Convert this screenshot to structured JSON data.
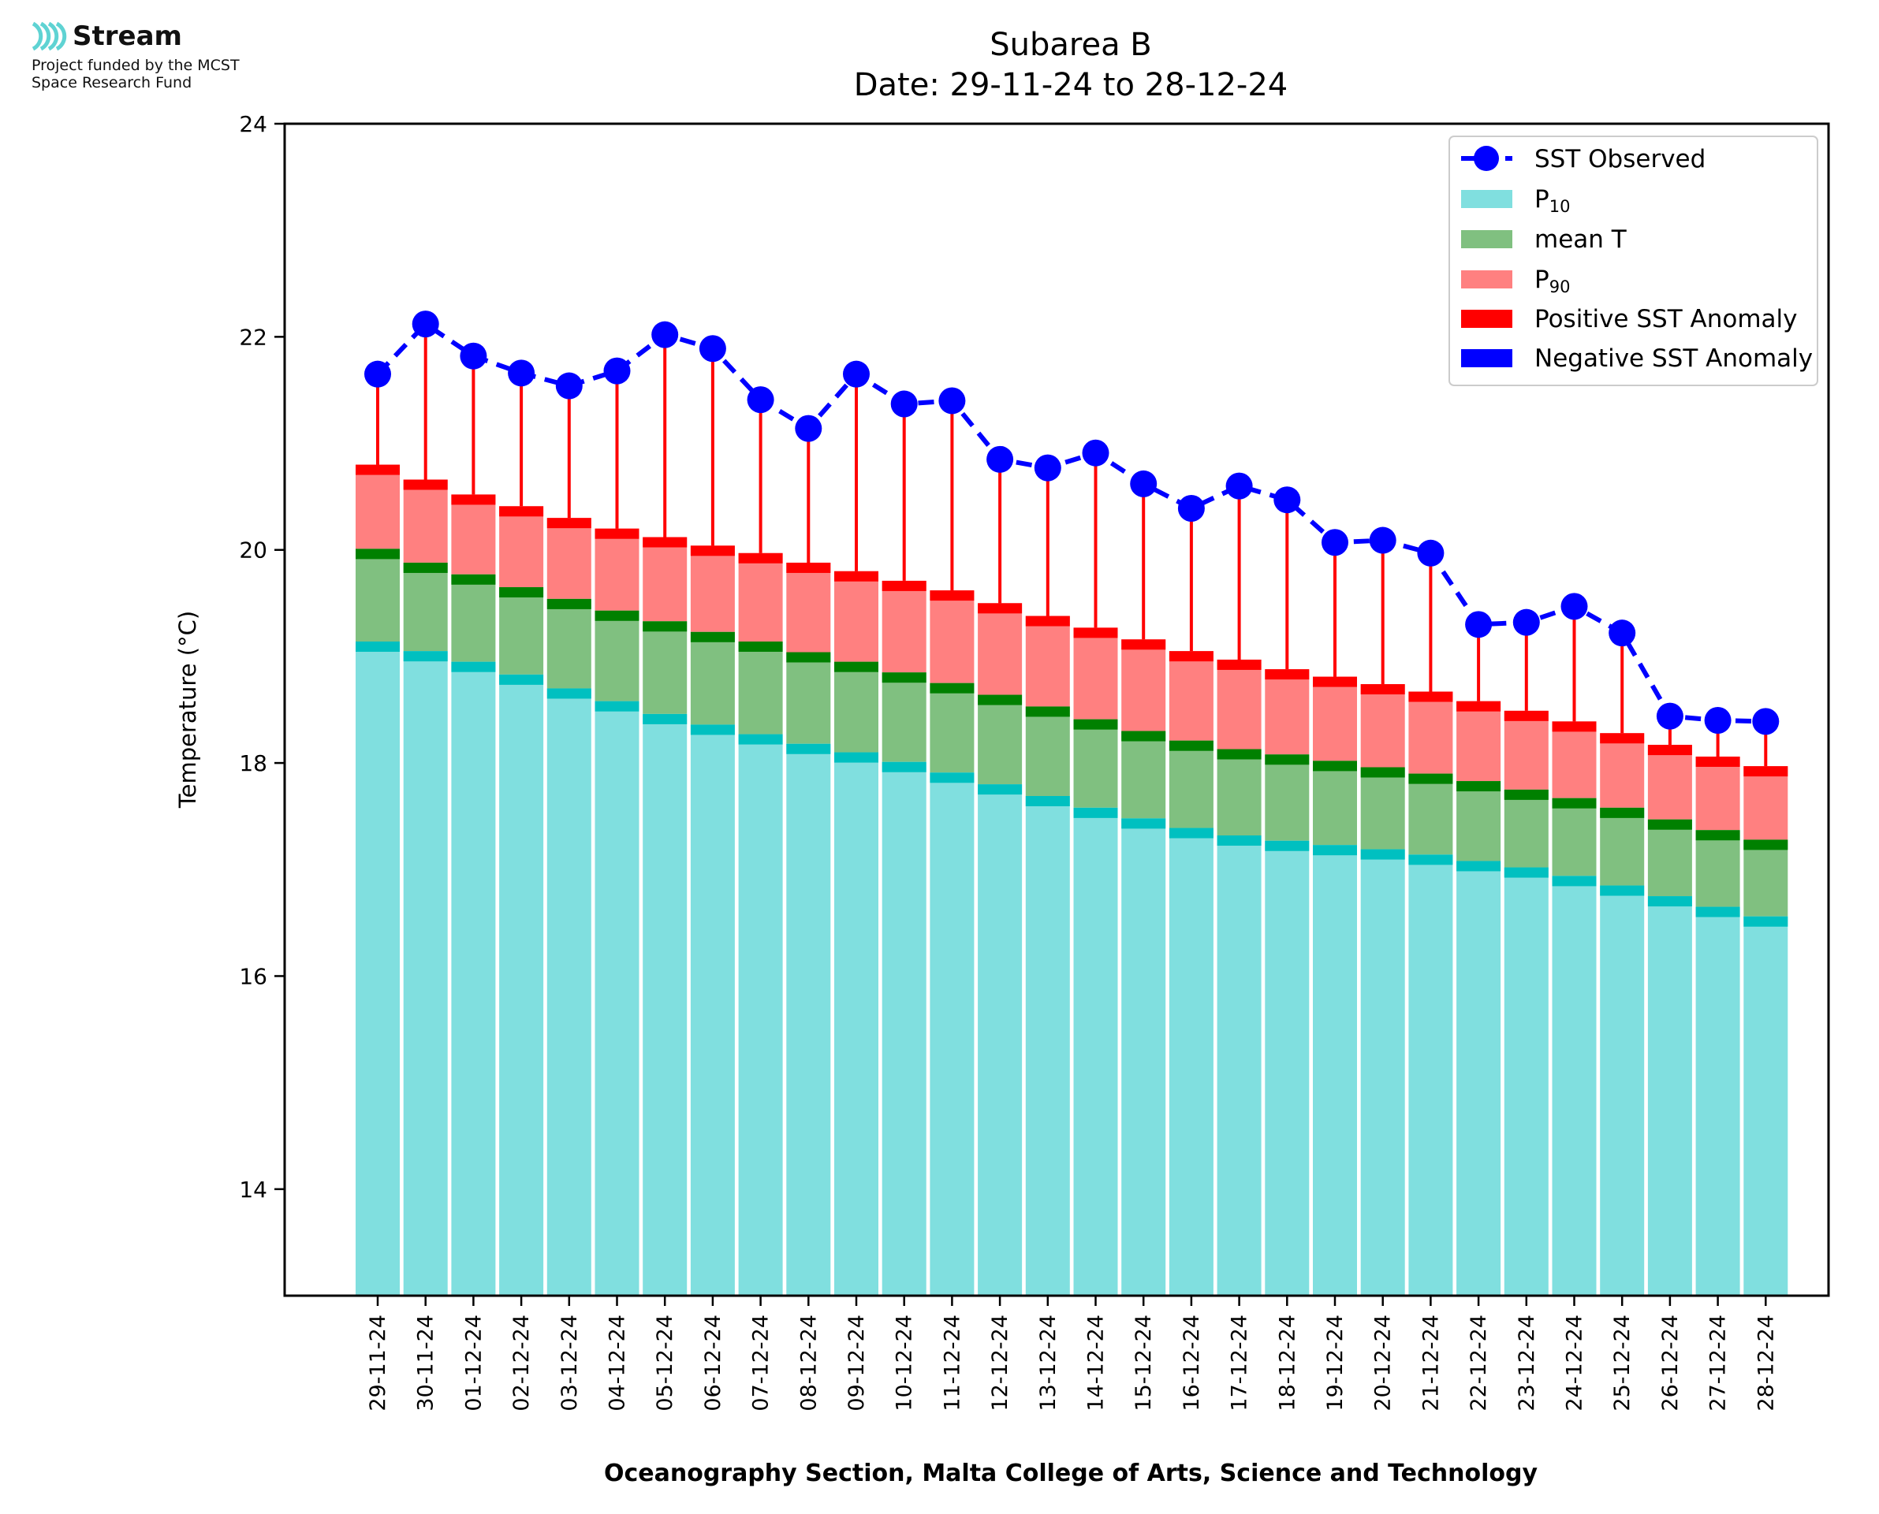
{
  "logo": {
    "name": "Stream",
    "subtitle_line1": "Project funded by the MCST",
    "subtitle_line2": "Space Research Fund"
  },
  "chart_data": {
    "type": "bar",
    "title": "Subarea B",
    "subtitle": "Date: 29-11-24 to 28-12-24",
    "xlabel": "Oceanography Section, Malta College of Arts, Science and Technology",
    "ylabel": "Temperature (°C)",
    "ylim": [
      13,
      24
    ],
    "yticks": [
      14,
      16,
      18,
      20,
      22,
      24
    ],
    "grid": false,
    "legend_position": "top-right",
    "categories": [
      "29-11-24",
      "30-11-24",
      "01-12-24",
      "02-12-24",
      "03-12-24",
      "04-12-24",
      "05-12-24",
      "06-12-24",
      "07-12-24",
      "08-12-24",
      "09-12-24",
      "10-12-24",
      "11-12-24",
      "12-12-24",
      "13-12-24",
      "14-12-24",
      "15-12-24",
      "16-12-24",
      "17-12-24",
      "18-12-24",
      "19-12-24",
      "20-12-24",
      "21-12-24",
      "22-12-24",
      "23-12-24",
      "24-12-24",
      "25-12-24",
      "26-12-24",
      "27-12-24",
      "28-12-24"
    ],
    "series": [
      {
        "name": "SST Observed",
        "style": "line-marker",
        "color": "#0000ff",
        "values": [
          21.65,
          22.12,
          21.82,
          21.66,
          21.54,
          21.68,
          22.02,
          21.89,
          21.41,
          21.14,
          21.65,
          21.37,
          21.4,
          20.85,
          20.77,
          20.91,
          20.62,
          20.39,
          20.6,
          20.47,
          20.07,
          20.09,
          19.97,
          19.3,
          19.32,
          19.47,
          19.22,
          18.44,
          18.4,
          18.39
        ]
      },
      {
        "name": "P10",
        "style": "bar",
        "color": "#80dfdf",
        "values": [
          19.14,
          19.05,
          18.95,
          18.83,
          18.7,
          18.58,
          18.46,
          18.36,
          18.27,
          18.18,
          18.1,
          18.01,
          17.91,
          17.8,
          17.69,
          17.58,
          17.48,
          17.39,
          17.32,
          17.27,
          17.23,
          17.19,
          17.14,
          17.08,
          17.02,
          16.94,
          16.85,
          16.75,
          16.65,
          16.56
        ]
      },
      {
        "name": "mean T",
        "style": "bar",
        "color": "#80c080",
        "values": [
          20.01,
          19.88,
          19.77,
          19.65,
          19.54,
          19.43,
          19.33,
          19.23,
          19.14,
          19.04,
          18.95,
          18.85,
          18.75,
          18.64,
          18.53,
          18.41,
          18.3,
          18.21,
          18.13,
          18.08,
          18.02,
          17.96,
          17.9,
          17.83,
          17.75,
          17.67,
          17.58,
          17.47,
          17.37,
          17.28
        ]
      },
      {
        "name": "P90",
        "style": "bar",
        "color": "#ff8080",
        "values": [
          20.8,
          20.66,
          20.52,
          20.41,
          20.3,
          20.2,
          20.12,
          20.04,
          19.97,
          19.88,
          19.8,
          19.71,
          19.62,
          19.5,
          19.38,
          19.27,
          19.16,
          19.05,
          18.97,
          18.88,
          18.81,
          18.74,
          18.67,
          18.58,
          18.49,
          18.39,
          18.28,
          18.17,
          18.06,
          17.97
        ]
      },
      {
        "name": "Positive SST Anomaly",
        "style": "error-bar",
        "color": "#ff0000"
      },
      {
        "name": "Negative SST Anomaly",
        "style": "error-bar",
        "color": "#0000ff"
      }
    ],
    "legend_labels": {
      "sst": "SST Observed",
      "p10_base": "P",
      "p10_sub": "10",
      "mean": "mean T",
      "p90_base": "P",
      "p90_sub": "90",
      "pos": "Positive SST Anomaly",
      "neg": "Negative SST Anomaly"
    },
    "colors": {
      "p10": "#80dfdf",
      "p10_edge": "#00c0c0",
      "mean": "#80c080",
      "mean_edge": "#008000",
      "p90": "#ff8080",
      "p90_edge": "#ff0000",
      "sst": "#0000ff",
      "pos": "#ff0000",
      "neg": "#0000ff"
    }
  }
}
